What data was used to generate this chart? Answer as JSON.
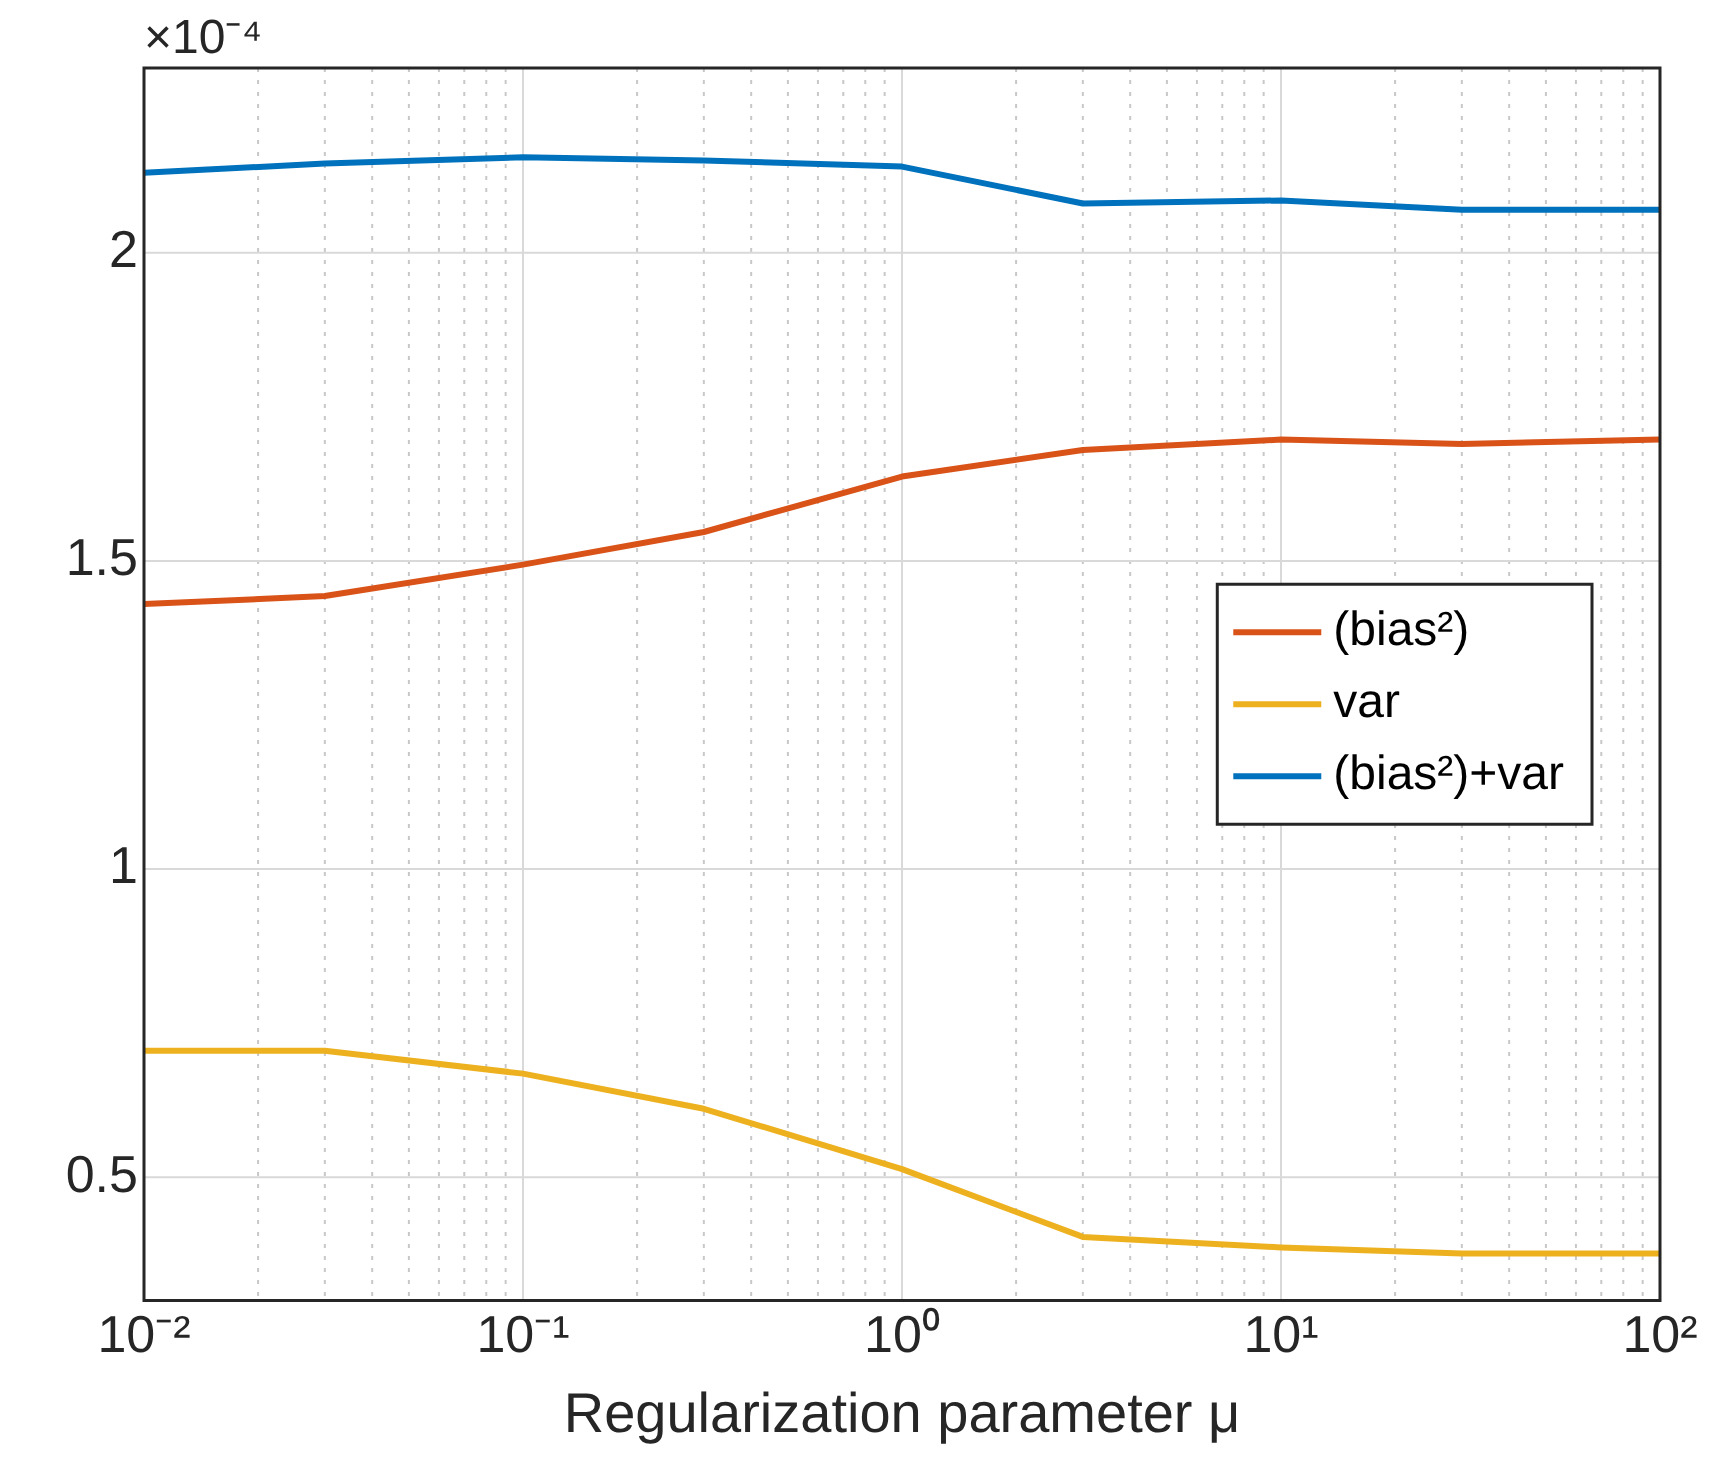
{
  "chart_data": {
    "type": "line",
    "xlabel": "Regularization parameter μ",
    "annotations": [
      "×10⁻⁴"
    ],
    "x": [
      0.01,
      0.03,
      0.1,
      0.3,
      1,
      3,
      10,
      30,
      100
    ],
    "series": [
      {
        "name": "(bias²)",
        "color": "#d95319",
        "values": [
          1.43,
          1.443,
          1.494,
          1.547,
          1.637,
          1.68,
          1.697,
          1.69,
          1.697
        ]
      },
      {
        "name": "var",
        "color": "#edb120",
        "values": [
          0.705,
          0.705,
          0.668,
          0.611,
          0.513,
          0.403,
          0.386,
          0.376,
          0.376
        ]
      },
      {
        "name": "(bias²)+var",
        "color": "#0072bd",
        "values": [
          2.13,
          2.145,
          2.155,
          2.15,
          2.14,
          2.08,
          2.085,
          2.07,
          2.07
        ]
      }
    ],
    "log": "x",
    "xlim": [
      0.01,
      100
    ],
    "xticks": [
      {
        "value": 0.01,
        "label": "10⁻²"
      },
      {
        "value": 0.1,
        "label": "10⁻¹"
      },
      {
        "value": 1,
        "label": "10⁰"
      },
      {
        "value": 10,
        "label": "10¹"
      },
      {
        "value": 100,
        "label": "10²"
      }
    ],
    "ylim": [
      0.3,
      2.3
    ],
    "yticks": [
      {
        "value": 0.5,
        "label": "0.5"
      },
      {
        "value": 1,
        "label": "1"
      },
      {
        "value": 1.5,
        "label": "1.5"
      },
      {
        "value": 2,
        "label": "2"
      }
    ],
    "grid": true,
    "legend": "right",
    "marker": "none",
    "line_style": "solid"
  }
}
